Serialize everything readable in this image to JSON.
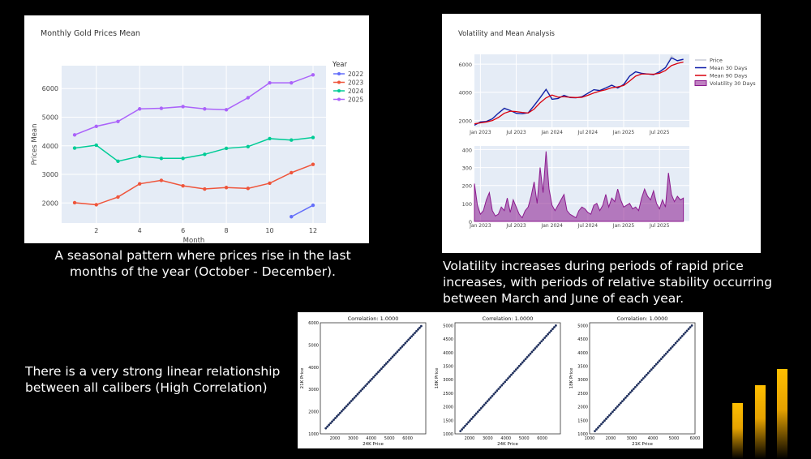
{
  "chart_data": [
    {
      "type": "line",
      "title": "Monthly Gold Prices Mean",
      "xlabel": "Month",
      "ylabel": "Prices Mean",
      "xlim": [
        0.4,
        12.6
      ],
      "ylim": [
        1300,
        6800
      ],
      "xticks": [
        2,
        4,
        6,
        8,
        10,
        12
      ],
      "yticks": [
        2000,
        3000,
        4000,
        5000,
        6000
      ],
      "legend_title": "Year",
      "legend_position": "top-right",
      "series": [
        {
          "name": "2022",
          "color": "#636efa",
          "x": [
            11,
            12
          ],
          "values": [
            1520,
            1920
          ]
        },
        {
          "name": "2023",
          "color": "#ef553b",
          "x": [
            1,
            2,
            3,
            4,
            5,
            6,
            7,
            8,
            9,
            10,
            11,
            12
          ],
          "values": [
            2010,
            1940,
            2210,
            2670,
            2790,
            2600,
            2490,
            2540,
            2510,
            2690,
            3060,
            3350
          ]
        },
        {
          "name": "2024",
          "color": "#00cc96",
          "x": [
            1,
            2,
            3,
            4,
            5,
            6,
            7,
            8,
            9,
            10,
            11,
            12
          ],
          "values": [
            3920,
            4020,
            3460,
            3630,
            3560,
            3560,
            3700,
            3910,
            3970,
            4250,
            4200,
            4290
          ]
        },
        {
          "name": "2025",
          "color": "#ab63fa",
          "x": [
            1,
            2,
            3,
            4,
            5,
            6,
            7,
            8,
            9,
            10,
            11,
            12
          ],
          "values": [
            4380,
            4680,
            4850,
            5290,
            5310,
            5370,
            5290,
            5260,
            5680,
            6200,
            6200,
            6480
          ]
        }
      ],
      "caption": "A seasonal pattern where prices rise in the last months of the year (October - December)."
    },
    {
      "type": "line",
      "title": "Volatility and Mean Analysis",
      "xlim": [
        "2022-12",
        "2025-12"
      ],
      "ylim": [
        1500,
        6700
      ],
      "yticks": [
        2000,
        4000,
        6000
      ],
      "xtick_labels": [
        "Jan 2023",
        "Jul 2023",
        "Jan 2024",
        "Jul 2024",
        "Jan 2025",
        "Jul 2025"
      ],
      "xtick_months": [
        1,
        7,
        13,
        19,
        25,
        31
      ],
      "legend_position": "top-right",
      "series": [
        {
          "name": "Price",
          "color": "#c7cbd6",
          "x_months": [
            0,
            1,
            2,
            3,
            4,
            5,
            6,
            7,
            8,
            9,
            10,
            11,
            12,
            13,
            14,
            15,
            16,
            17,
            18,
            19,
            20,
            21,
            22,
            23,
            24,
            25,
            26,
            27,
            28,
            29,
            30,
            31,
            32,
            33,
            34,
            35
          ],
          "values": [
            1700,
            1900,
            1950,
            2150,
            2550,
            2900,
            2700,
            2500,
            2480,
            2550,
            3100,
            3700,
            4250,
            3600,
            3550,
            3800,
            3650,
            3600,
            3700,
            3950,
            4200,
            4150,
            4350,
            4550,
            4300,
            4600,
            5200,
            5500,
            5300,
            5300,
            5250,
            5500,
            5800,
            6600,
            6200,
            6300
          ]
        },
        {
          "name": "Mean 30 Days",
          "color": "#0a1aa8",
          "x_months": [
            0,
            1,
            2,
            3,
            4,
            5,
            6,
            7,
            8,
            9,
            10,
            11,
            12,
            13,
            14,
            15,
            16,
            17,
            18,
            19,
            20,
            21,
            22,
            23,
            24,
            25,
            26,
            27,
            28,
            29,
            30,
            31,
            32,
            33,
            34,
            35
          ],
          "values": [
            1650,
            1880,
            1920,
            2100,
            2500,
            2850,
            2700,
            2500,
            2470,
            2530,
            3050,
            3600,
            4200,
            3500,
            3550,
            3780,
            3620,
            3600,
            3680,
            3920,
            4180,
            4120,
            4300,
            4500,
            4300,
            4550,
            5150,
            5450,
            5350,
            5300,
            5250,
            5450,
            5750,
            6450,
            6250,
            6350
          ]
        },
        {
          "name": "Mean 90 Days",
          "color": "#d9000d",
          "x_months": [
            0,
            1,
            2,
            3,
            4,
            5,
            6,
            7,
            8,
            9,
            10,
            11,
            12,
            13,
            14,
            15,
            16,
            17,
            18,
            19,
            20,
            21,
            22,
            23,
            24,
            25,
            26,
            27,
            28,
            29,
            30,
            31,
            32,
            33,
            34,
            35
          ],
          "values": [
            1750,
            1820,
            1880,
            1980,
            2200,
            2500,
            2650,
            2620,
            2560,
            2520,
            2800,
            3250,
            3600,
            3800,
            3650,
            3680,
            3640,
            3620,
            3640,
            3780,
            3950,
            4080,
            4180,
            4320,
            4380,
            4480,
            4800,
            5150,
            5300,
            5300,
            5280,
            5350,
            5550,
            5900,
            6050,
            6150
          ]
        },
        {
          "name": "Volatility 30 Days",
          "color": "#8b1a8e",
          "legend_type": "area"
        }
      ],
      "caption": "Volatility increases during periods of rapid price increases, with periods of relative stability occurring between March and June of each year."
    },
    {
      "type": "area",
      "title": "",
      "ylim": [
        0,
        420
      ],
      "yticks": [
        0,
        100,
        200,
        300,
        400
      ],
      "xtick_labels": [
        "Jan 2023",
        "Jul 2023",
        "Jan 2024",
        "Jul 2024",
        "Jan 2025",
        "Jul 2025"
      ],
      "xtick_months": [
        1,
        7,
        13,
        19,
        25,
        31
      ],
      "series": [
        {
          "name": "Volatility 30 Days",
          "color": "#8b1a8e",
          "x_months": [
            0,
            0.5,
            1,
            1.5,
            2,
            2.5,
            3,
            3.5,
            4,
            4.5,
            5,
            5.5,
            6,
            6.5,
            7,
            7.5,
            8,
            8.5,
            9,
            9.5,
            10,
            10.5,
            11,
            11.5,
            12,
            12.5,
            13,
            13.5,
            14,
            14.5,
            15,
            15.5,
            16,
            16.5,
            17,
            17.5,
            18,
            18.5,
            19,
            19.5,
            20,
            20.5,
            21,
            21.5,
            22,
            22.5,
            23,
            23.5,
            24,
            24.5,
            25,
            25.5,
            26,
            26.5,
            27,
            27.5,
            28,
            28.5,
            29,
            29.5,
            30,
            30.5,
            31,
            31.5,
            32,
            32.5,
            33,
            33.5,
            34,
            34.5,
            35
          ],
          "values": [
            210,
            90,
            40,
            60,
            120,
            160,
            60,
            30,
            40,
            80,
            60,
            130,
            50,
            120,
            80,
            40,
            20,
            60,
            80,
            140,
            220,
            100,
            300,
            160,
            390,
            180,
            90,
            60,
            90,
            120,
            150,
            60,
            40,
            30,
            20,
            60,
            80,
            70,
            50,
            40,
            90,
            100,
            60,
            90,
            150,
            80,
            130,
            110,
            180,
            120,
            80,
            90,
            100,
            70,
            80,
            60,
            130,
            180,
            140,
            120,
            170,
            100,
            70,
            120,
            80,
            270,
            150,
            110,
            140,
            120,
            130
          ]
        }
      ]
    },
    {
      "type": "scatter",
      "title": "Correlation: 1.0000",
      "xlabel": "24K Price",
      "ylabel": "21K Price",
      "xlim": [
        1200,
        7000
      ],
      "ylim": [
        1000,
        6000
      ],
      "xticks": [
        2000,
        3000,
        4000,
        5000,
        6000
      ],
      "yticks": [
        1000,
        2000,
        3000,
        4000,
        5000,
        6000
      ],
      "x": [
        1500,
        6750
      ],
      "values": [
        1250,
        5850
      ]
    },
    {
      "type": "scatter",
      "title": "Correlation: 1.0000",
      "xlabel": "24K Price",
      "ylabel": "18K Price",
      "xlim": [
        1200,
        7000
      ],
      "ylim": [
        1000,
        5100
      ],
      "xticks": [
        2000,
        3000,
        4000,
        5000,
        6000
      ],
      "yticks": [
        1000,
        1500,
        2000,
        2500,
        3000,
        3500,
        4000,
        4500,
        5000
      ],
      "x": [
        1500,
        6750
      ],
      "values": [
        1100,
        5000
      ]
    },
    {
      "type": "scatter",
      "title": "Correlation: 1.0000",
      "xlabel": "21K Price",
      "ylabel": "18K Price",
      "xlim": [
        1000,
        6000
      ],
      "ylim": [
        1000,
        5100
      ],
      "xticks": [
        1000,
        2000,
        3000,
        4000,
        5000,
        6000
      ],
      "yticks": [
        1000,
        1500,
        2000,
        2500,
        3000,
        3500,
        4000,
        4500,
        5000
      ],
      "x": [
        1250,
        5850
      ],
      "values": [
        1100,
        5000
      ]
    }
  ],
  "captions": {
    "seasonal": "A seasonal pattern where prices rise in the last months of the year (October - December).",
    "volatility": "Volatility increases during periods of rapid price increases, with periods of relative stability occurring between March and June of each year.",
    "correlation": "There is a very strong linear relationship between all calibers (High Correlation)"
  },
  "decor": {
    "bar_color": "#ffbf00",
    "bar_levels": [
      0.55,
      0.72,
      0.88
    ]
  }
}
